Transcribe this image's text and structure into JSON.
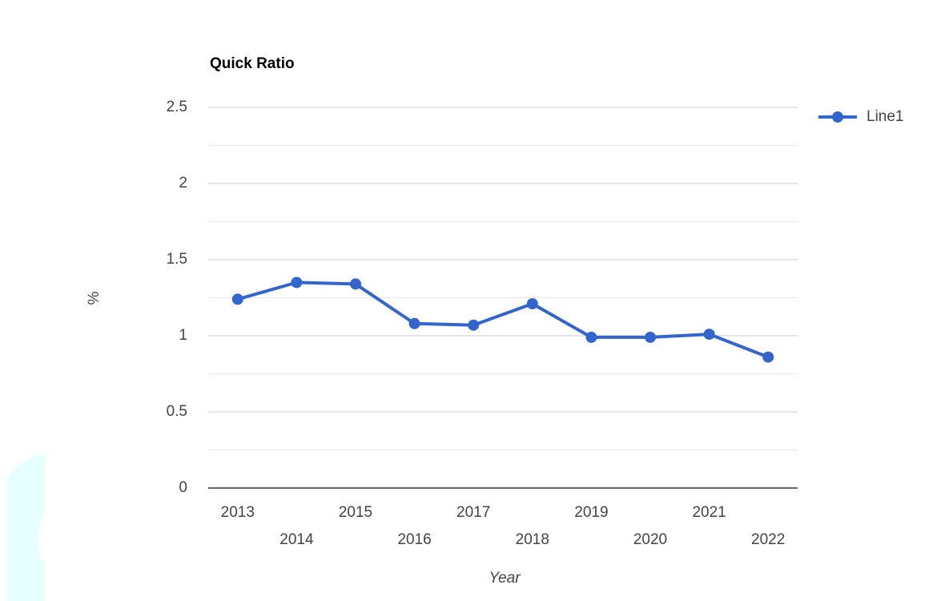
{
  "chart_data": {
    "type": "line",
    "title": "Quick Ratio",
    "x_label": "Year",
    "y_label": "%",
    "categories": [
      "2013",
      "2014",
      "2015",
      "2016",
      "2017",
      "2018",
      "2019",
      "2020",
      "2021",
      "2022"
    ],
    "series": [
      {
        "name": "Line1",
        "color": "#3366cc",
        "values": [
          1.24,
          1.35,
          1.34,
          1.08,
          1.07,
          1.21,
          0.99,
          0.99,
          1.01,
          0.86
        ]
      }
    ],
    "ylim": [
      0,
      2.5
    ],
    "yticks": [
      0,
      0.5,
      1,
      1.5,
      2,
      2.5
    ],
    "grid": true,
    "minor_grid": true,
    "legend": "right"
  }
}
